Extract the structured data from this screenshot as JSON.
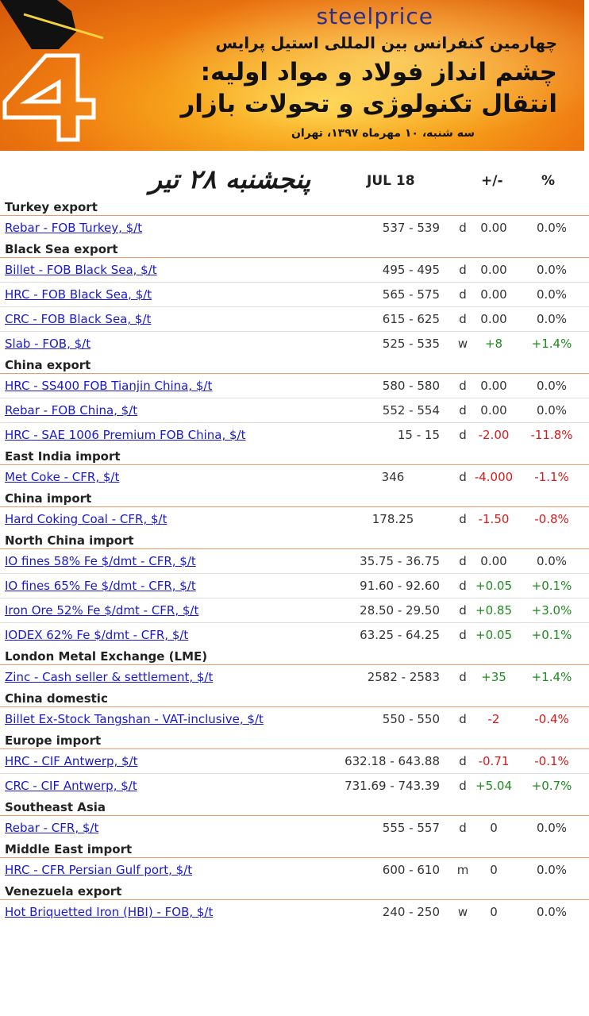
{
  "banner": {
    "logo": "steelprice",
    "line1": "چهارمین کنفرانس بین المللی استیل پرایس",
    "line2": "چشم انداز فولاد و مواد اولیه:",
    "line3": "انتقال تکنولوژی و تحولات بازار",
    "date": "سه شنبه، ۱۰ مهرماه ۱۳۹۷، تهران",
    "number": "4"
  },
  "header": {
    "persian_date": "پنجشنبه ۲۸ تیر",
    "date": "JUL 18",
    "change": "+/-",
    "percent": "%"
  },
  "colors": {
    "positive": "#1f8a1f",
    "negative": "#d91a1a",
    "link": "#1a1acc",
    "divider": "#f0986a"
  },
  "groups": [
    {
      "title": "Turkey export",
      "rows": [
        {
          "name": "Rebar - FOB Turkey, $/t",
          "range": "537 - 539",
          "period": "d",
          "change": "0.00",
          "pct": "0.0%",
          "trend": "neutral"
        }
      ]
    },
    {
      "title": "Black Sea export",
      "rows": [
        {
          "name": "Billet - FOB Black Sea, $/t",
          "range": "495 - 495",
          "period": "d",
          "change": "0.00",
          "pct": "0.0%",
          "trend": "neutral"
        },
        {
          "name": "HRC - FOB Black Sea, $/t",
          "range": "565 - 575",
          "period": "d",
          "change": "0.00",
          "pct": "0.0%",
          "trend": "neutral"
        },
        {
          "name": "CRC - FOB Black Sea, $/t",
          "range": "615 - 625",
          "period": "d",
          "change": "0.00",
          "pct": "0.0%",
          "trend": "neutral"
        },
        {
          "name": "Slab - FOB, $/t",
          "range": "525 - 535",
          "period": "w",
          "change": "+8",
          "pct": "+1.4%",
          "trend": "pos"
        }
      ]
    },
    {
      "title": "China export",
      "rows": [
        {
          "name": "HRC - SS400 FOB Tianjin China, $/t",
          "range": "580 - 580",
          "period": "d",
          "change": "0.00",
          "pct": "0.0%",
          "trend": "neutral"
        },
        {
          "name": "Rebar - FOB China, $/t",
          "range": "552 - 554",
          "period": "d",
          "change": "0.00",
          "pct": "0.0%",
          "trend": "neutral"
        },
        {
          "name": "HRC - SAE 1006 Premium FOB China, $/t",
          "range": "15 - 15",
          "period": "d",
          "change": "-2.00",
          "pct": "-11.8%",
          "trend": "neg"
        }
      ]
    },
    {
      "title": "East India import",
      "rows": [
        {
          "name": "Met Coke - CFR, $/t",
          "range": "346",
          "period": "d",
          "change": "-4.000",
          "pct": "-1.1%",
          "trend": "neg",
          "center": true
        }
      ]
    },
    {
      "title": "China import",
      "rows": [
        {
          "name": "Hard Coking Coal - CFR, $/t",
          "range": "178.25",
          "period": "d",
          "change": "-1.50",
          "pct": "-0.8%",
          "trend": "neg",
          "center": true
        }
      ]
    },
    {
      "title": "North China import",
      "rows": [
        {
          "name": "IO fines 58% Fe $/dmt - CFR, $/t",
          "range": "35.75 - 36.75",
          "period": "d",
          "change": "0.00",
          "pct": "0.0%",
          "trend": "neutral"
        },
        {
          "name": "IO fines 65% Fe $/dmt - CFR, $/t",
          "range": "91.60 - 92.60",
          "period": "d",
          "change": "+0.05",
          "pct": "+0.1%",
          "trend": "pos"
        },
        {
          "name": "Iron Ore 52% Fe $/dmt - CFR, $/t",
          "range": "28.50 - 29.50",
          "period": "d",
          "change": "+0.85",
          "pct": "+3.0%",
          "trend": "pos"
        },
        {
          "name": "IODEX 62% Fe $/dmt - CFR, $/t",
          "range": "63.25 - 64.25",
          "period": "d",
          "change": "+0.05",
          "pct": "+0.1%",
          "trend": "pos"
        }
      ]
    },
    {
      "title": "London Metal Exchange (LME)",
      "rows": [
        {
          "name": "Zinc - Cash seller & settlement, $/t",
          "range": "2582 - 2583",
          "period": "d",
          "change": "+35",
          "pct": "+1.4%",
          "trend": "pos"
        }
      ]
    },
    {
      "title": "China domestic",
      "rows": [
        {
          "name": "Billet Ex-Stock Tangshan - VAT-inclusive, $/t",
          "range": "550 - 550",
          "period": "d",
          "change": "-2",
          "pct": "-0.4%",
          "trend": "neg"
        }
      ]
    },
    {
      "title": "Europe import",
      "rows": [
        {
          "name": "HRC - CIF Antwerp, $/t",
          "range": "632.18 - 643.88",
          "period": "d",
          "change": "-0.71",
          "pct": "-0.1%",
          "trend": "neg"
        },
        {
          "name": "CRC - CIF Antwerp, $/t",
          "range": "731.69 - 743.39",
          "period": "d",
          "change": "+5.04",
          "pct": "+0.7%",
          "trend": "pos"
        }
      ]
    },
    {
      "title": "Southeast Asia",
      "rows": [
        {
          "name": "Rebar - CFR, $/t",
          "range": "555 - 557",
          "period": "d",
          "change": "0",
          "pct": "0.0%",
          "trend": "neutral"
        }
      ]
    },
    {
      "title": "Middle East import",
      "rows": [
        {
          "name": "HRC - CFR Persian Gulf port, $/t",
          "range": "600 - 610",
          "period": "m",
          "change": "0",
          "pct": "0.0%",
          "trend": "neutral"
        }
      ]
    },
    {
      "title": "Venezuela export",
      "rows": [
        {
          "name": "Hot Briquetted Iron (HBI) - FOB, $/t",
          "range": "240 - 250",
          "period": "w",
          "change": "0",
          "pct": "0.0%",
          "trend": "neutral"
        }
      ]
    }
  ]
}
